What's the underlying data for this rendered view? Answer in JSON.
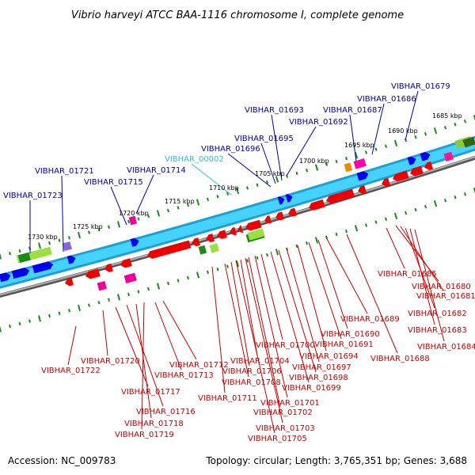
{
  "title": "Vibrio harveyi ATCC BAA-1116 chromosome I, complete genome",
  "accession": "Accession: NC_009783",
  "summary": "Topology: circular; Length: 3,765,351 bp; Genes: 3,688",
  "colors": {
    "forward_label": "#0000b4",
    "reverse_label": "#cc0000",
    "rna_label": "#33bbdd",
    "forward_gene": "#0000ee",
    "reverse_gene": "#ee0000",
    "backbone": "#33ccff",
    "backbone_dark": "#666666",
    "tick": "#1a8a1a"
  },
  "kbp_labels": [
    "1685 kbp",
    "1690 kbp",
    "1695 kbp",
    "1700 kbp",
    "1705 kbp",
    "1710 kbp",
    "1715 kbp",
    "1720 kbp",
    "1725 kbp",
    "1730 kbp"
  ],
  "forward_labels": [
    "VIBHAR_01679",
    "VIBHAR_01686",
    "VIBHAR_01687",
    "VIBHAR_01692",
    "VIBHAR_01693",
    "VIBHAR_01695",
    "VIBHAR_01696",
    "VIBHAR_00002",
    "VIBHAR_01714",
    "VIBHAR_01715",
    "VIBHAR_01721",
    "VIBHAR_01723"
  ],
  "reverse_labels": [
    "VIBHAR_01680",
    "VIBHAR_01681",
    "VIBHAR_01682",
    "VIBHAR_01683",
    "VIBHAR_01684",
    "VIBHAR_01685",
    "VIBHAR_01688",
    "VIBHAR_01689",
    "VIBHAR_01690",
    "VIBHAR_01691",
    "VIBHAR_01694",
    "VIBHAR_01697",
    "VIBHAR_01698",
    "VIBHAR_01699",
    "VIBHAR_01700",
    "VIBHAR_01701",
    "VIBHAR_01702",
    "VIBHAR_01703",
    "VIBHAR_01704",
    "VIBHAR_01705",
    "VIBHAR_01706",
    "VIBHAR_01708",
    "VIBHAR_01711",
    "VIBHAR_01712",
    "VIBHAR_01713",
    "VIBHAR_01716",
    "VIBHAR_01717",
    "VIBHAR_01718",
    "VIBHAR_01719",
    "VIBHAR_01720",
    "VIBHAR_01722"
  ]
}
